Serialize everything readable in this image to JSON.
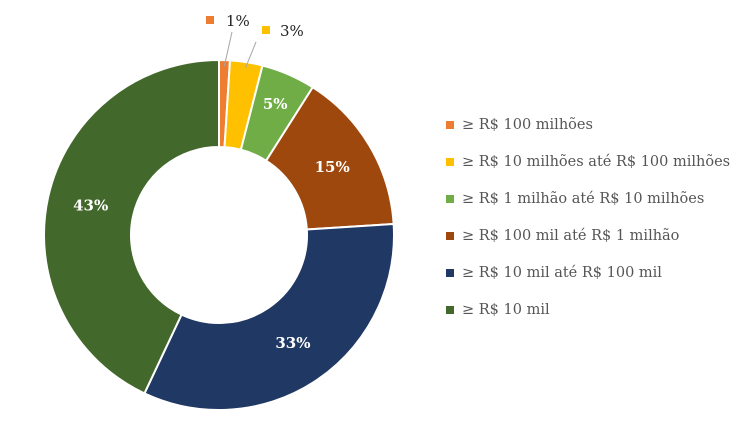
{
  "chart_data": {
    "type": "pie",
    "donut": true,
    "title": "",
    "legend_position": "right",
    "categories": [
      "≥ R$ 100 milhões",
      "≥ R$ 10 milhões até R$ 100 milhões",
      "≥ R$ 1 milhão até R$ 10 milhões",
      "≥ R$ 100 mil até R$ 1 milhão",
      "≥ R$ 10 mil até R$ 100 mil",
      "≥ R$ 10 mil"
    ],
    "values": [
      1,
      3,
      5,
      15,
      33,
      43
    ],
    "labels": [
      "1%",
      "3%",
      "5%",
      "15%",
      "33%",
      "43%"
    ],
    "colors": [
      "#ED7D31",
      "#FFC000",
      "#70AD47",
      "#9E480E",
      "#203864",
      "#43682B"
    ]
  }
}
